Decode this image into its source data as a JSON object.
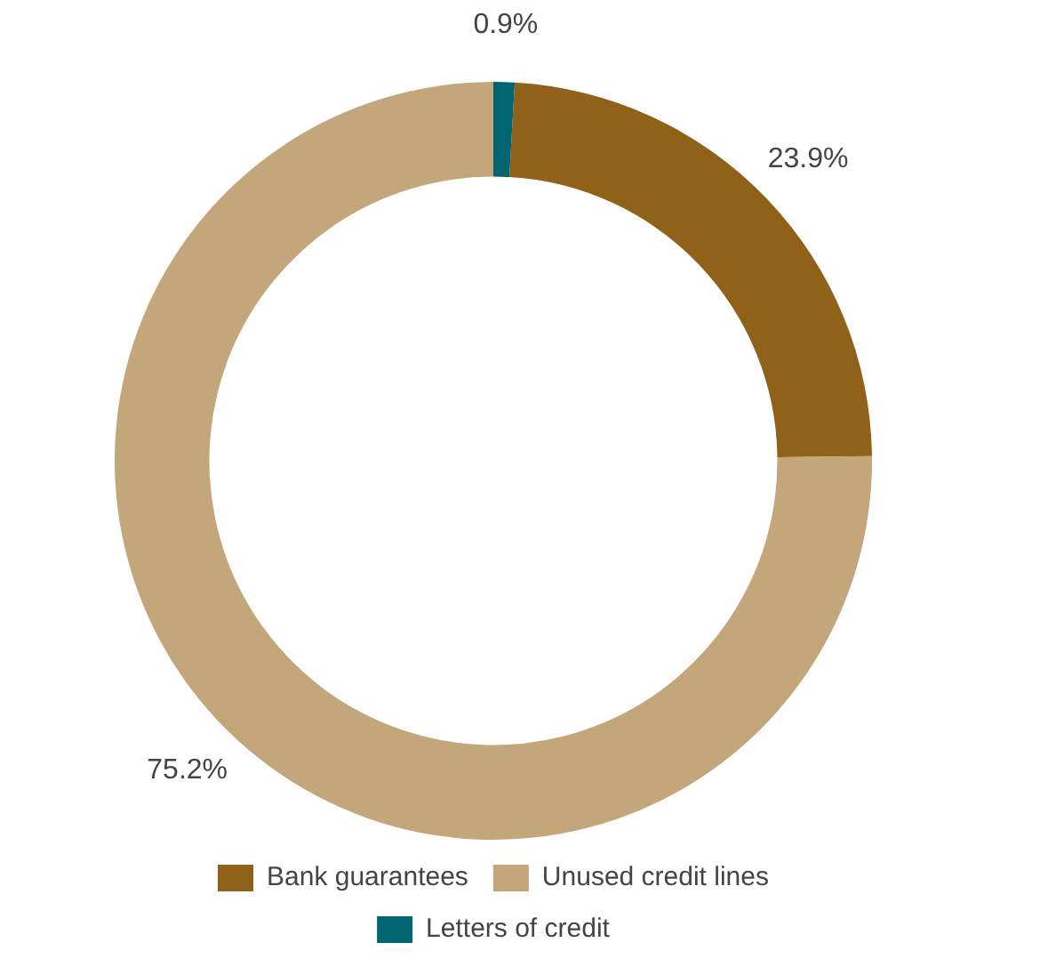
{
  "chart_data": {
    "type": "donut",
    "categories": [
      "Bank guarantees",
      "Unused credit lines",
      "Letters of credit"
    ],
    "values": [
      23.9,
      75.2,
      0.9
    ],
    "colors": [
      "#8f6119",
      "#c4a67b",
      "#006570"
    ],
    "value_labels": [
      "23.9%",
      "75.2%",
      "0.9%"
    ],
    "legend": "bottom"
  }
}
